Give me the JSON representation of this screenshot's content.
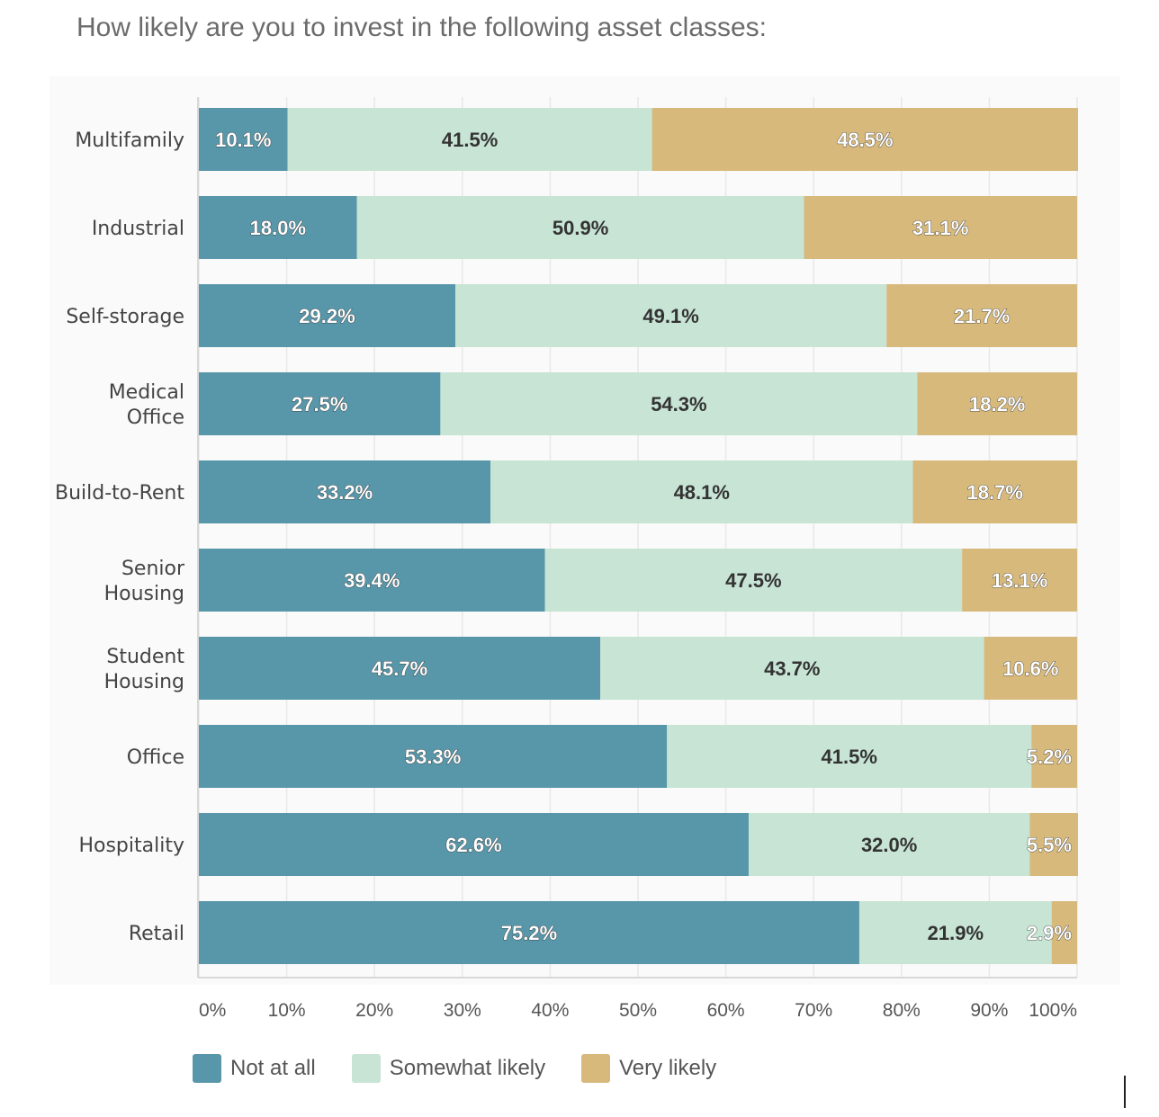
{
  "title": "How likely are you to invest in the following asset classes:",
  "chart_data": {
    "type": "bar",
    "orientation": "horizontal",
    "stacked": true,
    "categories": [
      [
        "Multifamily"
      ],
      [
        "Industrial"
      ],
      [
        "Self-storage"
      ],
      [
        "Medical",
        "Office"
      ],
      [
        "Build-to-Rent"
      ],
      [
        "Senior",
        "Housing"
      ],
      [
        "Student",
        "Housing"
      ],
      [
        "Office"
      ],
      [
        "Hospitality"
      ],
      [
        "Retail"
      ]
    ],
    "series": [
      {
        "name": "Not at all",
        "color": "#5797a9",
        "values": [
          10.1,
          18.0,
          29.2,
          27.5,
          33.2,
          39.4,
          45.7,
          53.3,
          62.6,
          75.2
        ],
        "labels": [
          "10.1%",
          "18.0%",
          "29.2%",
          "27.5%",
          "33.2%",
          "39.4%",
          "45.7%",
          "53.3%",
          "62.6%",
          "75.2%"
        ]
      },
      {
        "name": "Somewhat likely",
        "color": "#c7e4d4",
        "values": [
          41.5,
          50.9,
          49.1,
          54.3,
          48.1,
          47.5,
          43.7,
          41.5,
          32.0,
          21.9
        ],
        "labels": [
          "41.5%",
          "50.9%",
          "49.1%",
          "54.3%",
          "48.1%",
          "47.5%",
          "43.7%",
          "41.5%",
          "32.0%",
          "21.9%"
        ]
      },
      {
        "name": "Very likely",
        "color": "#d7b97c",
        "values": [
          48.5,
          31.1,
          21.7,
          18.2,
          18.7,
          13.1,
          10.6,
          5.2,
          5.5,
          2.9
        ],
        "labels": [
          "48.5%",
          "31.1%",
          "21.7%",
          "18.2%",
          "18.7%",
          "13.1%",
          "10.6%",
          "5.2%",
          "5.5%",
          "2.9%"
        ]
      }
    ],
    "x_ticks": [
      "0%",
      "10%",
      "20%",
      "30%",
      "40%",
      "50%",
      "60%",
      "70%",
      "80%",
      "90%",
      "100%"
    ],
    "xlim": [
      0,
      100
    ],
    "grid": true,
    "legend_position": "bottom"
  }
}
